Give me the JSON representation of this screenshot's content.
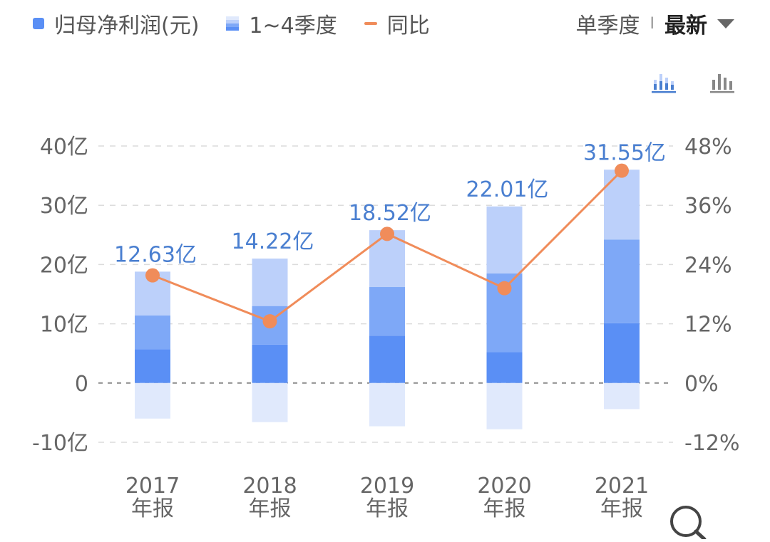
{
  "legend": {
    "profit_label": "归母净利润(元)",
    "quarters_label": "1~4季度",
    "yoy_label": "同比"
  },
  "controls": {
    "mode_label": "单季度",
    "separator": "I",
    "period_label": "最新"
  },
  "icons": {
    "stacked_view": "stacked-bar-chart-icon",
    "grouped_view": "bar-chart-icon",
    "zoom": "magnifier-icon"
  },
  "colors": {
    "q_dark": "#5a8ff5",
    "q_mid": "#7ea8f7",
    "q_light": "#bcd0fa",
    "q_neg": "#e0e9fc",
    "line": "#f08c5a",
    "value_label": "#4a7fd0"
  },
  "chart_data": {
    "type": "bar",
    "categories": [
      [
        "2017",
        "年报"
      ],
      [
        "2018",
        "年报"
      ],
      [
        "2019",
        "年报"
      ],
      [
        "2020",
        "年报"
      ],
      [
        "2021",
        "年报"
      ]
    ],
    "left_axis": {
      "min": -10,
      "max": 40,
      "ticks": [
        "-10亿",
        "0",
        "10亿",
        "20亿",
        "30亿",
        "40亿"
      ]
    },
    "right_axis": {
      "min": -12,
      "max": 48,
      "ticks": [
        "-12%",
        "0%",
        "12%",
        "24%",
        "36%",
        "48%"
      ]
    },
    "stack_segments": [
      {
        "values": [
          5.7,
          6.5,
          8.0,
          5.2,
          10.1
        ]
      },
      {
        "values": [
          5.7,
          6.5,
          8.2,
          13.3,
          14.1
        ]
      },
      {
        "values": [
          7.4,
          8.0,
          9.6,
          11.3,
          11.8
        ]
      },
      {
        "values": [
          -6.0,
          -6.6,
          -7.3,
          -7.8,
          -4.4
        ]
      }
    ],
    "totals_labels": [
      "12.63亿",
      "14.22亿",
      "18.52亿",
      "22.01亿",
      "31.55亿"
    ],
    "yoy_percent": [
      21.8,
      12.5,
      30.2,
      19.2,
      43.0
    ],
    "grid": true,
    "legend_position": "top-left"
  }
}
